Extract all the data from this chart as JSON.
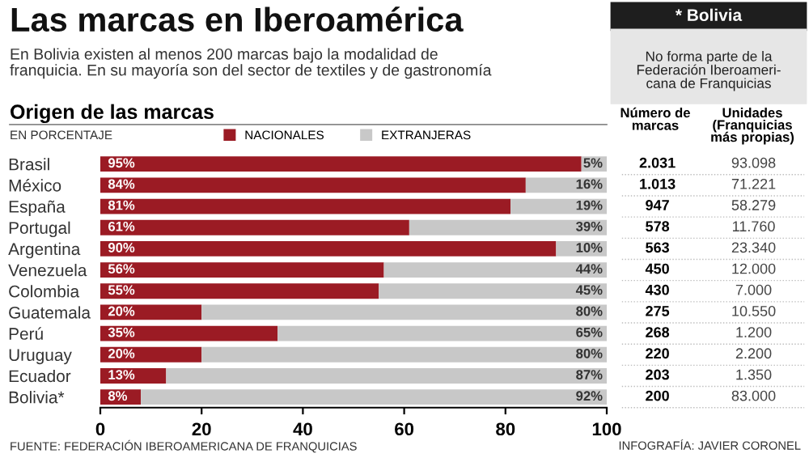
{
  "chart_data": {
    "type": "bar",
    "orientation": "horizontal",
    "stacked": true,
    "title": "Las marcas en Iberoamérica",
    "subtitle": "En Bolivia existen al menos 200 marcas bajo la modalidad de\nfranquicia. En su mayoría son del sector de textiles y de gastronomía",
    "categories": [
      "Brasil",
      "México",
      "España",
      "Portugal",
      "Argentina",
      "Venezuela",
      "Colombia",
      "Guatemala",
      "Perú",
      "Uruguay",
      "Ecuador",
      "Bolivia*"
    ],
    "series": [
      {
        "name": "NACIONALES",
        "color": "#9b1b24",
        "values": [
          95,
          84,
          81,
          61,
          90,
          56,
          55,
          20,
          35,
          20,
          13,
          8
        ],
        "value_labels": [
          "95%",
          "84%",
          "81%",
          "61%",
          "90%",
          "56%",
          "55%",
          "20%",
          "35%",
          "20%",
          "13%",
          "8%"
        ]
      },
      {
        "name": "EXTRANJERAS",
        "color": "#c8c8c8",
        "values": [
          5,
          16,
          19,
          39,
          10,
          44,
          45,
          80,
          65,
          80,
          87,
          92
        ],
        "value_labels": [
          "5%",
          "16%",
          "19%",
          "39%",
          "10%",
          "44%",
          "45%",
          "80%",
          "65%",
          "80%",
          "87%",
          "92%"
        ]
      }
    ],
    "xlim": [
      0,
      100
    ],
    "xticks": [
      0,
      20,
      40,
      60,
      80,
      100
    ],
    "grid": false,
    "legend": "top",
    "annotations": [
      "* Bolivia",
      "No forma parte de la\nFederación Iberoameri-\ncana de Franquicias",
      "Origen de las marcas",
      "EN PORCENTAJE",
      "Número de\nmarcas",
      "Unidades\n(Franquicias\nmás propias)",
      "2.031",
      "1.013",
      "947",
      "578",
      "563",
      "450",
      "430",
      "275",
      "268",
      "220",
      "203",
      "200",
      "93.098",
      "71.221",
      "58.279",
      "11.760",
      "23.340",
      "12.000",
      "7.000",
      "10.550",
      "1.200",
      "2.200",
      "1.350",
      "83.000",
      "FUENTE: FEDERACIÓN IBEROAMERICANA DE FRANQUICIAS",
      "INFOGRAFÍA: JAVIER CORONEL"
    ]
  }
}
